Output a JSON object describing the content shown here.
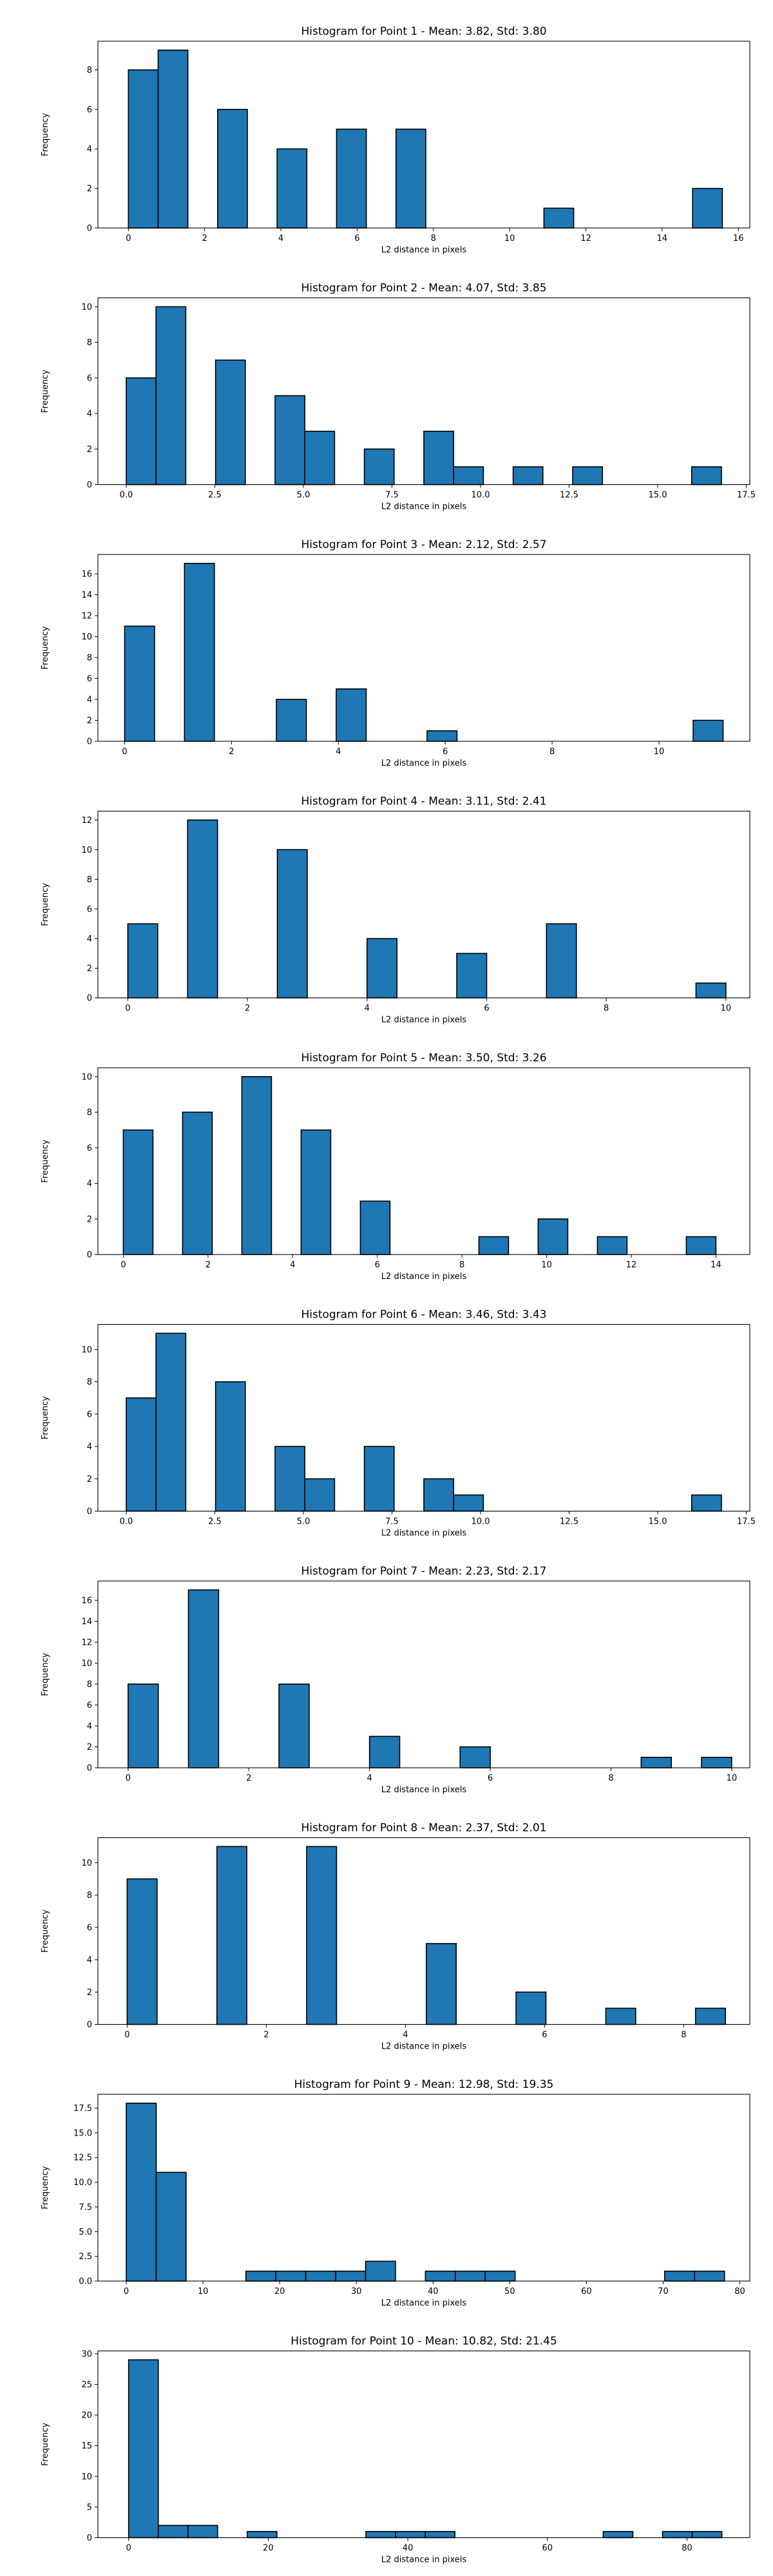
{
  "chart_data": [
    {
      "type": "bar",
      "title": "Histogram for Point 1 - Mean: 3.82, Std: 3.80",
      "xlabel": "L2 distance in pixels",
      "ylabel": "Frequency",
      "xlim": [
        -0.8,
        16.3
      ],
      "ylim": [
        0,
        9.45
      ],
      "xticks": [
        0,
        2,
        4,
        6,
        8,
        10,
        12,
        14,
        16
      ],
      "xtick_labels": [
        "0",
        "2",
        "4",
        "6",
        "8",
        "10",
        "12",
        "14",
        "16"
      ],
      "yticks": [
        0,
        2,
        4,
        6,
        8
      ],
      "ytick_labels": [
        "0",
        "2",
        "4",
        "6",
        "8"
      ],
      "bars": [
        {
          "x0": 0.0,
          "x1": 0.78,
          "y": 8
        },
        {
          "x0": 0.78,
          "x1": 1.56,
          "y": 9
        },
        {
          "x0": 2.34,
          "x1": 3.12,
          "y": 6
        },
        {
          "x0": 3.9,
          "x1": 4.68,
          "y": 4
        },
        {
          "x0": 5.46,
          "x1": 6.24,
          "y": 5
        },
        {
          "x0": 7.02,
          "x1": 7.8,
          "y": 5
        },
        {
          "x0": 10.9,
          "x1": 11.68,
          "y": 1
        },
        {
          "x0": 14.8,
          "x1": 15.58,
          "y": 2
        }
      ]
    },
    {
      "type": "bar",
      "title": "Histogram for Point 2 - Mean: 4.07, Std: 3.85",
      "xlabel": "L2 distance in pixels",
      "ylabel": "Frequency",
      "xlim": [
        -0.8,
        17.6
      ],
      "ylim": [
        0,
        10.5
      ],
      "xticks": [
        0,
        2.5,
        5,
        7.5,
        10,
        12.5,
        15,
        17.5
      ],
      "xtick_labels": [
        "0.0",
        "2.5",
        "5.0",
        "7.5",
        "10.0",
        "12.5",
        "15.0",
        "17.5"
      ],
      "yticks": [
        0,
        2,
        4,
        6,
        8,
        10
      ],
      "ytick_labels": [
        "0",
        "2",
        "4",
        "6",
        "8",
        "10"
      ],
      "bars": [
        {
          "x0": 0.0,
          "x1": 0.84,
          "y": 6
        },
        {
          "x0": 0.84,
          "x1": 1.68,
          "y": 10
        },
        {
          "x0": 2.52,
          "x1": 3.36,
          "y": 7
        },
        {
          "x0": 4.2,
          "x1": 5.04,
          "y": 5
        },
        {
          "x0": 5.04,
          "x1": 5.88,
          "y": 3
        },
        {
          "x0": 6.72,
          "x1": 7.56,
          "y": 2
        },
        {
          "x0": 8.4,
          "x1": 9.24,
          "y": 3
        },
        {
          "x0": 9.24,
          "x1": 10.08,
          "y": 1
        },
        {
          "x0": 10.92,
          "x1": 11.76,
          "y": 1
        },
        {
          "x0": 12.6,
          "x1": 13.44,
          "y": 1
        },
        {
          "x0": 15.96,
          "x1": 16.8,
          "y": 1
        }
      ]
    },
    {
      "type": "bar",
      "title": "Histogram for Point 3 - Mean: 2.12, Std: 2.57",
      "xlabel": "L2 distance in pixels",
      "ylabel": "Frequency",
      "xlim": [
        -0.5,
        11.7
      ],
      "ylim": [
        0,
        17.85
      ],
      "xticks": [
        0,
        2,
        4,
        6,
        8,
        10
      ],
      "xtick_labels": [
        "0",
        "2",
        "4",
        "6",
        "8",
        "10"
      ],
      "yticks": [
        0,
        2,
        4,
        6,
        8,
        10,
        12,
        14,
        16
      ],
      "ytick_labels": [
        "0",
        "2",
        "4",
        "6",
        "8",
        "10",
        "12",
        "14",
        "16"
      ],
      "bars": [
        {
          "x0": 0.0,
          "x1": 0.56,
          "y": 11
        },
        {
          "x0": 1.12,
          "x1": 1.68,
          "y": 17
        },
        {
          "x0": 2.84,
          "x1": 3.4,
          "y": 4
        },
        {
          "x0": 3.96,
          "x1": 4.52,
          "y": 5
        },
        {
          "x0": 5.66,
          "x1": 6.22,
          "y": 1
        },
        {
          "x0": 10.64,
          "x1": 11.2,
          "y": 2
        }
      ]
    },
    {
      "type": "bar",
      "title": "Histogram for Point 4 - Mean: 3.11, Std: 2.41",
      "xlabel": "L2 distance in pixels",
      "ylabel": "Frequency",
      "xlim": [
        -0.5,
        10.4
      ],
      "ylim": [
        0,
        12.6
      ],
      "xticks": [
        0,
        2,
        4,
        6,
        8,
        10
      ],
      "xtick_labels": [
        "0",
        "2",
        "4",
        "6",
        "8",
        "10"
      ],
      "yticks": [
        0,
        2,
        4,
        6,
        8,
        10,
        12
      ],
      "ytick_labels": [
        "0",
        "2",
        "4",
        "6",
        "8",
        "10",
        "12"
      ],
      "bars": [
        {
          "x0": 0.0,
          "x1": 0.5,
          "y": 5
        },
        {
          "x0": 1.0,
          "x1": 1.5,
          "y": 12
        },
        {
          "x0": 2.5,
          "x1": 3.0,
          "y": 10
        },
        {
          "x0": 4.0,
          "x1": 4.5,
          "y": 4
        },
        {
          "x0": 5.5,
          "x1": 6.0,
          "y": 3
        },
        {
          "x0": 7.0,
          "x1": 7.5,
          "y": 5
        },
        {
          "x0": 9.5,
          "x1": 10.0,
          "y": 1
        }
      ]
    },
    {
      "type": "bar",
      "title": "Histogram for Point 5 - Mean: 3.50, Std: 3.26",
      "xlabel": "L2 distance in pixels",
      "ylabel": "Frequency",
      "xlim": [
        -0.6,
        14.8
      ],
      "ylim": [
        0,
        10.5
      ],
      "xticks": [
        0,
        2,
        4,
        6,
        8,
        10,
        12,
        14
      ],
      "xtick_labels": [
        "0",
        "2",
        "4",
        "6",
        "8",
        "10",
        "12",
        "14"
      ],
      "yticks": [
        0,
        2,
        4,
        6,
        8,
        10
      ],
      "ytick_labels": [
        "0",
        "2",
        "4",
        "6",
        "8",
        "10"
      ],
      "bars": [
        {
          "x0": 0.0,
          "x1": 0.7,
          "y": 7
        },
        {
          "x0": 1.4,
          "x1": 2.1,
          "y": 8
        },
        {
          "x0": 2.8,
          "x1": 3.5,
          "y": 10
        },
        {
          "x0": 4.2,
          "x1": 4.9,
          "y": 7
        },
        {
          "x0": 5.6,
          "x1": 6.3,
          "y": 3
        },
        {
          "x0": 8.4,
          "x1": 9.1,
          "y": 1
        },
        {
          "x0": 9.8,
          "x1": 10.5,
          "y": 2
        },
        {
          "x0": 11.2,
          "x1": 11.9,
          "y": 1
        },
        {
          "x0": 13.3,
          "x1": 14.0,
          "y": 1
        }
      ]
    },
    {
      "type": "bar",
      "title": "Histogram for Point 6 - Mean: 3.46, Std: 3.43",
      "xlabel": "L2 distance in pixels",
      "ylabel": "Frequency",
      "xlim": [
        -0.8,
        17.6
      ],
      "ylim": [
        0,
        11.55
      ],
      "xticks": [
        0,
        2.5,
        5,
        7.5,
        10,
        12.5,
        15,
        17.5
      ],
      "xtick_labels": [
        "0.0",
        "2.5",
        "5.0",
        "7.5",
        "10.0",
        "12.5",
        "15.0",
        "17.5"
      ],
      "yticks": [
        0,
        2,
        4,
        6,
        8,
        10
      ],
      "ytick_labels": [
        "0",
        "2",
        "4",
        "6",
        "8",
        "10"
      ],
      "bars": [
        {
          "x0": 0.0,
          "x1": 0.84,
          "y": 7
        },
        {
          "x0": 0.84,
          "x1": 1.68,
          "y": 11
        },
        {
          "x0": 2.52,
          "x1": 3.36,
          "y": 8
        },
        {
          "x0": 4.2,
          "x1": 5.04,
          "y": 4
        },
        {
          "x0": 5.04,
          "x1": 5.88,
          "y": 2
        },
        {
          "x0": 6.72,
          "x1": 7.56,
          "y": 4
        },
        {
          "x0": 8.4,
          "x1": 9.24,
          "y": 2
        },
        {
          "x0": 9.24,
          "x1": 10.08,
          "y": 1
        },
        {
          "x0": 15.96,
          "x1": 16.8,
          "y": 1
        }
      ]
    },
    {
      "type": "bar",
      "title": "Histogram for Point 7 - Mean: 2.23, Std: 2.17",
      "xlabel": "L2 distance in pixels",
      "ylabel": "Frequency",
      "xlim": [
        -0.5,
        10.3
      ],
      "ylim": [
        0,
        17.85
      ],
      "xticks": [
        0,
        2,
        4,
        6,
        8,
        10
      ],
      "xtick_labels": [
        "0",
        "2",
        "4",
        "6",
        "8",
        "10"
      ],
      "yticks": [
        0,
        2,
        4,
        6,
        8,
        10,
        12,
        14,
        16
      ],
      "ytick_labels": [
        "0",
        "2",
        "4",
        "6",
        "8",
        "10",
        "12",
        "14",
        "16"
      ],
      "bars": [
        {
          "x0": 0.0,
          "x1": 0.5,
          "y": 8
        },
        {
          "x0": 1.0,
          "x1": 1.5,
          "y": 17
        },
        {
          "x0": 2.5,
          "x1": 3.0,
          "y": 8
        },
        {
          "x0": 4.0,
          "x1": 4.5,
          "y": 3
        },
        {
          "x0": 5.5,
          "x1": 6.0,
          "y": 2
        },
        {
          "x0": 8.5,
          "x1": 9.0,
          "y": 1
        },
        {
          "x0": 9.5,
          "x1": 10.0,
          "y": 1
        }
      ]
    },
    {
      "type": "bar",
      "title": "Histogram for Point 8 - Mean: 2.37, Std: 2.01",
      "xlabel": "L2 distance in pixels",
      "ylabel": "Frequency",
      "xlim": [
        -0.42,
        8.95
      ],
      "ylim": [
        0,
        11.55
      ],
      "xticks": [
        0,
        2,
        4,
        6,
        8
      ],
      "xtick_labels": [
        "0",
        "2",
        "4",
        "6",
        "8"
      ],
      "yticks": [
        0,
        2,
        4,
        6,
        8,
        10
      ],
      "ytick_labels": [
        "0",
        "2",
        "4",
        "6",
        "8",
        "10"
      ],
      "bars": [
        {
          "x0": 0.0,
          "x1": 0.43,
          "y": 9
        },
        {
          "x0": 1.29,
          "x1": 1.72,
          "y": 11
        },
        {
          "x0": 2.58,
          "x1": 3.01,
          "y": 11
        },
        {
          "x0": 4.3,
          "x1": 4.73,
          "y": 5
        },
        {
          "x0": 5.59,
          "x1": 6.02,
          "y": 2
        },
        {
          "x0": 6.88,
          "x1": 7.31,
          "y": 1
        },
        {
          "x0": 8.17,
          "x1": 8.6,
          "y": 1
        }
      ]
    },
    {
      "type": "bar",
      "title": "Histogram for Point 9 - Mean: 12.98, Std: 19.35",
      "xlabel": "L2 distance in pixels",
      "ylabel": "Frequency",
      "xlim": [
        -3.7,
        81.3
      ],
      "ylim": [
        0,
        18.9
      ],
      "xticks": [
        0,
        10,
        20,
        30,
        40,
        50,
        60,
        70,
        80
      ],
      "xtick_labels": [
        "0",
        "10",
        "20",
        "30",
        "40",
        "50",
        "60",
        "70",
        "80"
      ],
      "yticks": [
        0,
        2.5,
        5,
        7.5,
        10,
        12.5,
        15,
        17.5
      ],
      "ytick_labels": [
        "0.0",
        "2.5",
        "5.0",
        "7.5",
        "10.0",
        "12.5",
        "15.0",
        "17.5"
      ],
      "bars": [
        {
          "x0": 0.0,
          "x1": 3.9,
          "y": 18
        },
        {
          "x0": 3.9,
          "x1": 7.8,
          "y": 11
        },
        {
          "x0": 15.6,
          "x1": 19.5,
          "y": 1
        },
        {
          "x0": 19.5,
          "x1": 23.4,
          "y": 1
        },
        {
          "x0": 23.4,
          "x1": 27.3,
          "y": 1
        },
        {
          "x0": 27.3,
          "x1": 31.2,
          "y": 1
        },
        {
          "x0": 31.2,
          "x1": 35.1,
          "y": 2
        },
        {
          "x0": 39.0,
          "x1": 42.9,
          "y": 1
        },
        {
          "x0": 42.9,
          "x1": 46.8,
          "y": 1
        },
        {
          "x0": 46.8,
          "x1": 50.7,
          "y": 1
        },
        {
          "x0": 70.2,
          "x1": 74.1,
          "y": 1
        },
        {
          "x0": 74.1,
          "x1": 78.0,
          "y": 1
        }
      ]
    },
    {
      "type": "bar",
      "title": "Histogram for Point 10 - Mean: 10.82, Std: 21.45",
      "xlabel": "L2 distance in pixels",
      "ylabel": "Frequency",
      "xlim": [
        -4.4,
        89.0
      ],
      "ylim": [
        0,
        30.45
      ],
      "xticks": [
        0,
        20,
        40,
        60,
        80
      ],
      "xtick_labels": [
        "0",
        "20",
        "40",
        "60",
        "80"
      ],
      "yticks": [
        0,
        5,
        10,
        15,
        20,
        25,
        30
      ],
      "ytick_labels": [
        "0",
        "5",
        "10",
        "15",
        "20",
        "25",
        "30"
      ],
      "bars": [
        {
          "x0": 0.0,
          "x1": 4.25,
          "y": 29
        },
        {
          "x0": 4.25,
          "x1": 8.5,
          "y": 2
        },
        {
          "x0": 8.5,
          "x1": 12.75,
          "y": 2
        },
        {
          "x0": 17.0,
          "x1": 21.25,
          "y": 1
        },
        {
          "x0": 34.0,
          "x1": 38.25,
          "y": 1
        },
        {
          "x0": 38.25,
          "x1": 42.5,
          "y": 1
        },
        {
          "x0": 42.5,
          "x1": 46.75,
          "y": 1
        },
        {
          "x0": 68.0,
          "x1": 72.25,
          "y": 1
        },
        {
          "x0": 76.5,
          "x1": 80.75,
          "y": 1
        },
        {
          "x0": 80.75,
          "x1": 85.0,
          "y": 1
        }
      ]
    }
  ],
  "colors": {
    "bar_fill": "#1f77b4",
    "bar_edge": "#000000",
    "axis": "#000000",
    "background": "#ffffff"
  }
}
